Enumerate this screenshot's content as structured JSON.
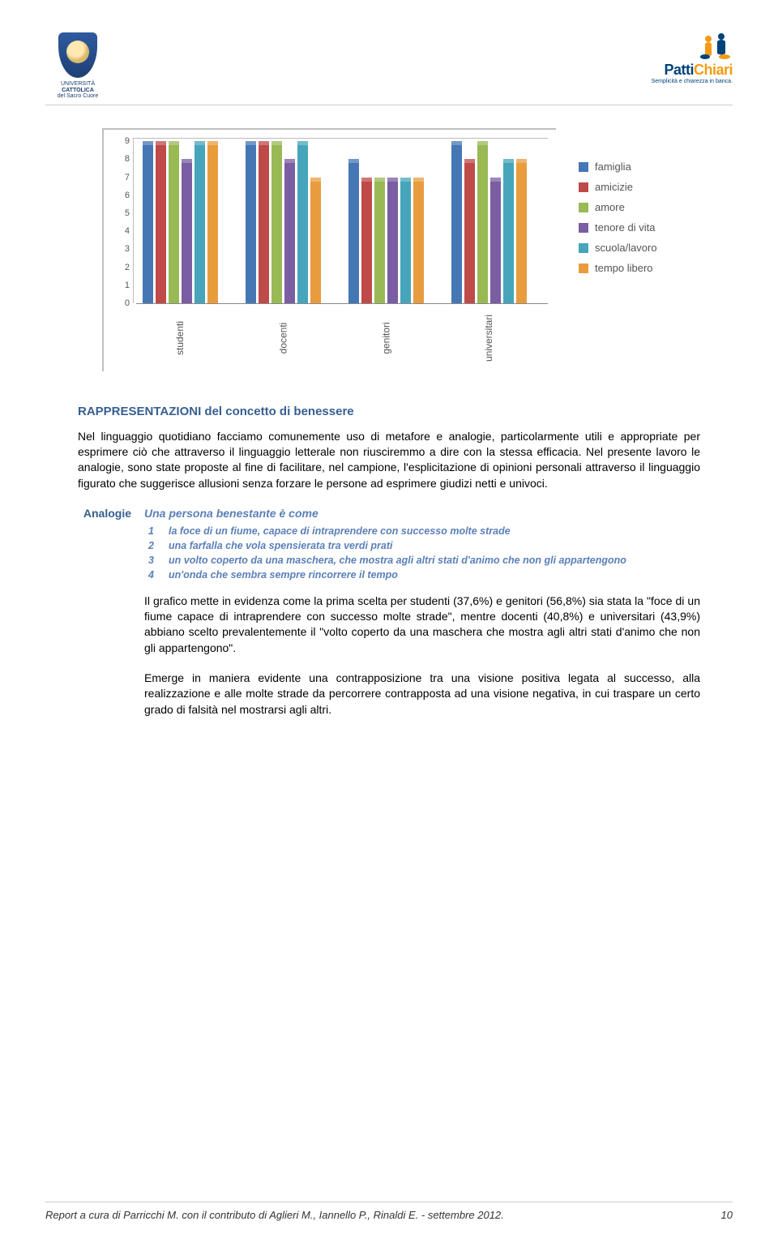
{
  "logo_left": {
    "line1": "UNIVERSITÀ",
    "line2": "CATTOLICA",
    "line3": "del Sacro Cuore"
  },
  "logo_right": {
    "brand_a": "Patti",
    "brand_b": "Chiari",
    "sub": "Semplicità e chiarezza in banca."
  },
  "chart": {
    "type": "bar",
    "ymax": 9,
    "ytick_step": 1,
    "ytick_labels": [
      "9",
      "8",
      "7",
      "6",
      "5",
      "4",
      "3",
      "2",
      "1",
      "0"
    ],
    "axis_color": "#888",
    "series": [
      {
        "name": "famiglia",
        "color": "#4577b5"
      },
      {
        "name": "amicizie",
        "color": "#be4b48"
      },
      {
        "name": "amore",
        "color": "#98b954"
      },
      {
        "name": "tenore di vita",
        "color": "#7a5da2"
      },
      {
        "name": "scuola/lavoro",
        "color": "#46a5ba"
      },
      {
        "name": "tempo libero",
        "color": "#e89c3e"
      }
    ],
    "categories": [
      {
        "label": "studenti",
        "values": [
          9,
          9,
          9,
          8,
          9,
          9
        ]
      },
      {
        "label": "docenti",
        "values": [
          9,
          9,
          9,
          8,
          9,
          7
        ]
      },
      {
        "label": "genitori",
        "values": [
          8,
          7,
          7,
          7,
          7,
          7
        ]
      },
      {
        "label": "universitari",
        "values": [
          9,
          8,
          9,
          7,
          8,
          8
        ]
      }
    ]
  },
  "body": {
    "h1": "RAPPRESENTAZIONI del concetto di benessere",
    "p1": "Nel linguaggio quotidiano facciamo comunemente uso di metafore e analogie, particolarmente utili e appropriate per esprimere ciò che attraverso il linguaggio letterale non riusciremmo a dire con la stessa efficacia. Nel presente lavoro le analogie, sono state proposte al fine di facilitare, nel campione, l'esplicitazione di opinioni personali attraverso il linguaggio figurato che suggerisce allusioni senza forzare le persone ad esprimere giudizi netti e univoci.",
    "side_label": "Analogie",
    "em_title": "Una persona benestante è come",
    "options": [
      {
        "n": "1",
        "t": "la foce di un fiume, capace di intraprendere con successo molte strade"
      },
      {
        "n": "2",
        "t": "una farfalla che vola spensierata tra verdi prati"
      },
      {
        "n": "3",
        "t": "un volto coperto da una maschera, che mostra agli altri stati d'animo che non gli appartengono"
      },
      {
        "n": "4",
        "t": "un'onda che sembra sempre rincorrere il tempo"
      }
    ],
    "p2": "Il grafico mette in evidenza come la prima scelta per studenti (37,6%) e genitori (56,8%) sia stata la \"foce di un fiume capace di intraprendere con successo molte strade\", mentre docenti (40,8%) e universitari (43,9%) abbiano scelto prevalentemente il \"volto coperto da una maschera che mostra agli altri stati d'animo che non gli appartengono\".",
    "p3": "Emerge in maniera evidente una contrapposizione tra una visione positiva legata al successo, alla realizzazione e alle molte strade da percorrere contrapposta ad una visione negativa, in cui traspare un certo grado di falsità nel mostrarsi agli altri."
  },
  "footer": {
    "text": "Report a cura di Parricchi M. con il contributo di Aglieri M., Iannello P., Rinaldi E. - settembre 2012.",
    "page": "10"
  }
}
